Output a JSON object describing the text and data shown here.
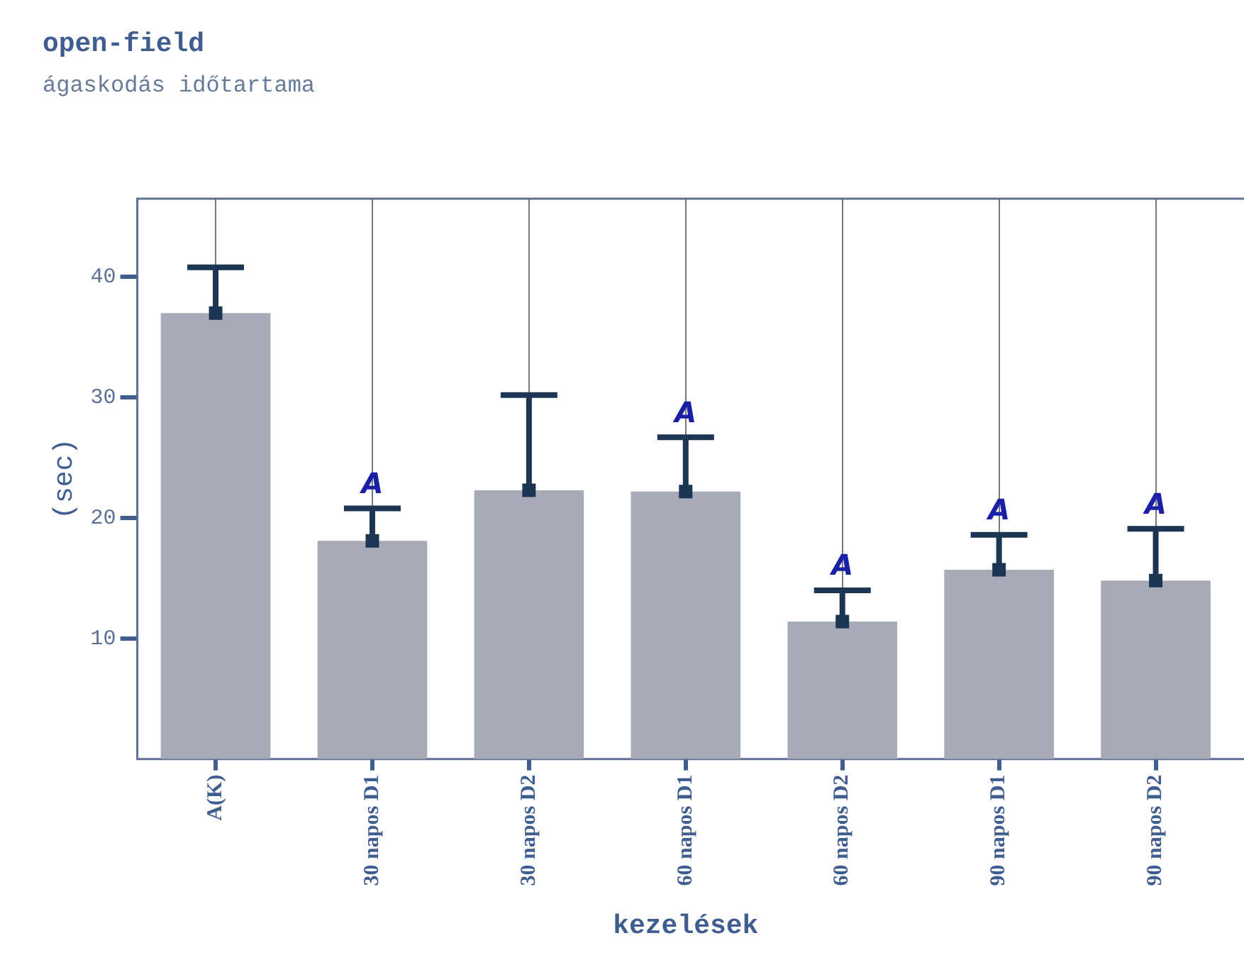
{
  "chart_data": {
    "type": "bar",
    "title": "open-field",
    "subtitle": "ágaskodás időtartama",
    "xlabel": "kezelések",
    "ylabel": "(sec)",
    "categories": [
      "A(K)",
      "30 napos D1",
      "30 napos D2",
      "60 napos D1",
      "60 napos D2",
      "90 napos D1",
      "90 napos D2"
    ],
    "series": [
      {
        "color": "#a7abb8",
        "values": [
          37.0,
          18.1,
          22.3,
          22.2,
          11.4,
          15.7,
          14.8
        ],
        "errors": [
          [
            37.0,
            40.8
          ],
          [
            18.1,
            20.8
          ],
          [
            22.3,
            30.2
          ],
          [
            22.2,
            26.7
          ],
          [
            11.4,
            14.0
          ],
          [
            15.7,
            18.6
          ],
          [
            14.8,
            19.1
          ]
        ],
        "value_labels": [
          null,
          "A",
          null,
          "A",
          "A",
          "A",
          "A"
        ]
      },
      {
        "type": "scatter",
        "color": "#1c3553",
        "marker": "square",
        "x": [
          "A(K)",
          "30 napos D1",
          "30 napos D2",
          "60 napos D1",
          "60 napos D2",
          "90 napos D1",
          "90 napos D2"
        ],
        "values": [
          37.0,
          18.1,
          22.3,
          22.2,
          11.4,
          15.7,
          14.8
        ]
      }
    ],
    "ylim": [
      0,
      46.5
    ],
    "yticks": [
      10,
      20,
      30,
      40
    ],
    "grid": "x",
    "legend": false
  }
}
